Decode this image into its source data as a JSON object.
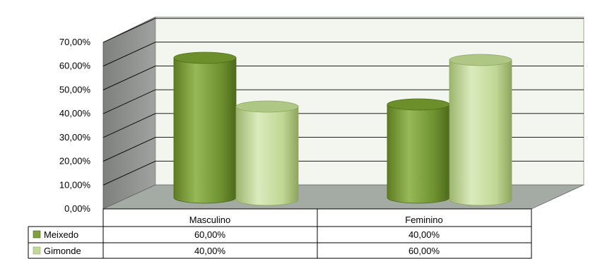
{
  "chart_data": {
    "type": "bar",
    "style": "3d-cylinder",
    "title": "",
    "xlabel": "",
    "ylabel": "",
    "categories": [
      "Masculino",
      "Feminino"
    ],
    "series": [
      {
        "name": "Meixedo",
        "values": [
          60,
          40
        ],
        "value_labels": [
          "60,00%",
          "40,00%"
        ],
        "color": "#7fa23c"
      },
      {
        "name": "Gimonde",
        "values": [
          40,
          60
        ],
        "value_labels": [
          "40,00%",
          "60,00%"
        ],
        "color": "#c3d99a"
      }
    ],
    "y_ticks": [
      "0,00%",
      "10,00%",
      "20,00%",
      "30,00%",
      "40,00%",
      "50,00%",
      "60,00%",
      "70,00%"
    ],
    "ylim": [
      0,
      70
    ],
    "grid": true,
    "legend": "data-table",
    "colors": {
      "wall": "#f3f6ee",
      "floor": "#a4aaa4",
      "side_wall": "#8d908d",
      "grid": "#000000"
    }
  }
}
